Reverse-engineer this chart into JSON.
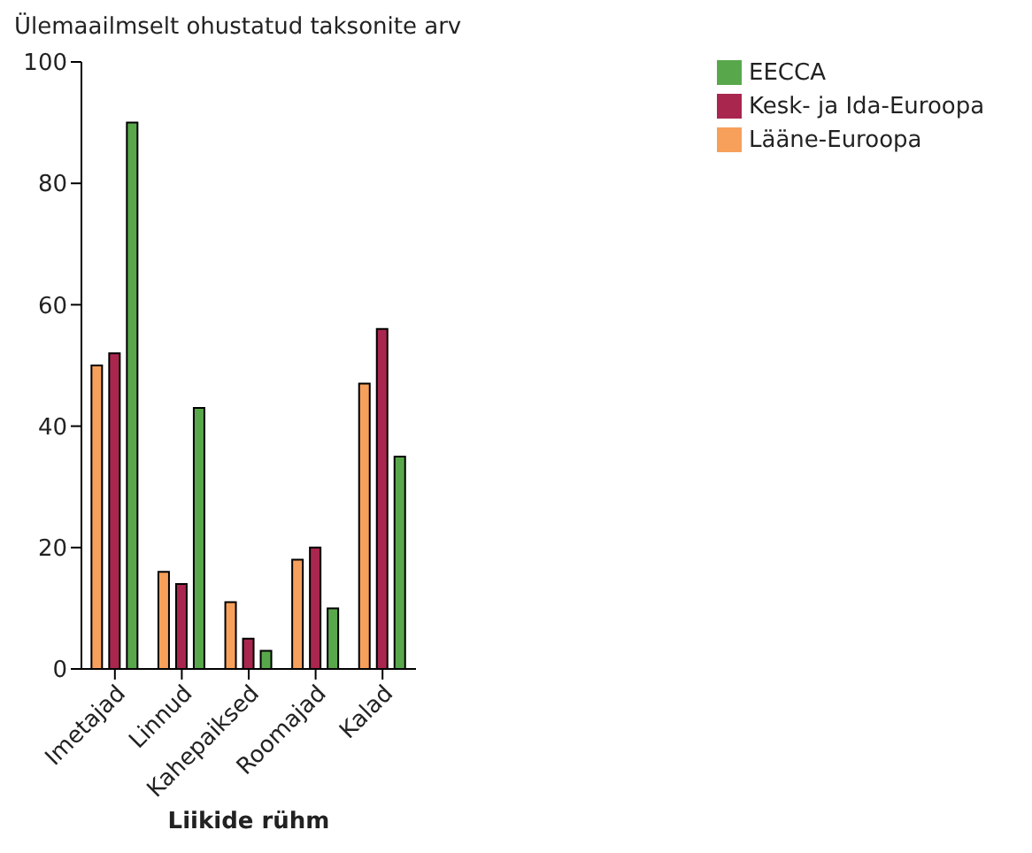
{
  "chart_data": {
    "type": "bar",
    "ylabel": "Ülemaailmselt ohustatud taksonite arv",
    "xlabel": "Liikide rühm",
    "categories": [
      "Imetajad",
      "Linnud",
      "Kahepaiksed",
      "Roomajad",
      "Kalad"
    ],
    "series": [
      {
        "name": "Lääne-Euroopa",
        "color": "#f7a05c",
        "values": [
          50,
          16,
          11,
          18,
          47
        ]
      },
      {
        "name": "Kesk- ja Ida-Euroopa",
        "color": "#a9264f",
        "values": [
          52,
          14,
          5,
          20,
          56
        ]
      },
      {
        "name": "EECCA",
        "color": "#58a84b",
        "values": [
          90,
          43,
          3,
          10,
          35
        ]
      }
    ],
    "ylim": [
      0,
      100
    ],
    "yticks": [
      0,
      20,
      40,
      60,
      80,
      100
    ],
    "grid": false,
    "legend": "top right"
  }
}
